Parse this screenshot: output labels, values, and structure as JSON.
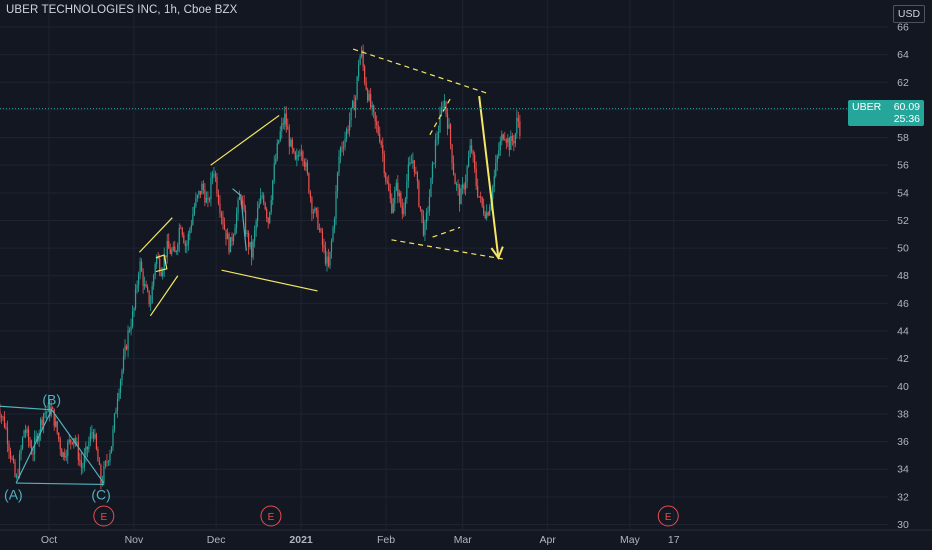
{
  "header": {
    "title": "UBER TECHNOLOGIES INC, 1h, Cboe BZX"
  },
  "price_scale": {
    "currency": "USD"
  },
  "last_price": {
    "symbol": "UBER",
    "price": "60.09",
    "countdown": "25:36"
  },
  "colors": {
    "background": "#131722",
    "up": "#26a69a",
    "down": "#ef5350",
    "drawing_yellow": "#f5e663",
    "drawing_teal": "#4fb3bf",
    "grid": "#1f2330",
    "earnings": "#e84d4d"
  },
  "chart_data": {
    "type": "candlestick",
    "yaxis": {
      "min": 30,
      "max": 66,
      "ticks": [
        30,
        32,
        34,
        36,
        38,
        40,
        42,
        44,
        46,
        48,
        50,
        52,
        54,
        56,
        58,
        60,
        62,
        64,
        66
      ]
    },
    "xaxis": {
      "labels": [
        {
          "label": "Oct",
          "day": 0,
          "bold": false
        },
        {
          "label": "Nov",
          "day": 31,
          "bold": false
        },
        {
          "label": "Dec",
          "day": 61,
          "bold": false
        },
        {
          "label": "2021",
          "day": 92,
          "bold": true
        },
        {
          "label": "Feb",
          "day": 123,
          "bold": false
        },
        {
          "label": "Mar",
          "day": 151,
          "bold": false
        },
        {
          "label": "Apr",
          "day": 182,
          "bold": false
        },
        {
          "label": "May",
          "day": 212,
          "bold": false
        },
        {
          "label": "17",
          "day": 228,
          "bold": false
        }
      ]
    },
    "price_path": [
      [
        -19,
        38.8
      ],
      [
        -16,
        37.2
      ],
      [
        -12,
        33.0
      ],
      [
        -9,
        37.0
      ],
      [
        -6,
        35.2
      ],
      [
        -2,
        38.1
      ],
      [
        1,
        38.3
      ],
      [
        5,
        35.0
      ],
      [
        9,
        36.5
      ],
      [
        12,
        34.0
      ],
      [
        16,
        37.0
      ],
      [
        19,
        33.0
      ],
      [
        21,
        34.5
      ],
      [
        23,
        36.0
      ],
      [
        25,
        39.5
      ],
      [
        27,
        41.5
      ],
      [
        29,
        44.0
      ],
      [
        31,
        45.5
      ],
      [
        33,
        49.0
      ],
      [
        35,
        47.0
      ],
      [
        37,
        46.0
      ],
      [
        39,
        49.5
      ],
      [
        41,
        48.5
      ],
      [
        43,
        50.0
      ],
      [
        46,
        49.5
      ],
      [
        48,
        52.0
      ],
      [
        50,
        50.0
      ],
      [
        53,
        53.0
      ],
      [
        56,
        54.5
      ],
      [
        58,
        53.0
      ],
      [
        60,
        56.0
      ],
      [
        62,
        53.5
      ],
      [
        64,
        51.5
      ],
      [
        66,
        50.0
      ],
      [
        68,
        52.0
      ],
      [
        70,
        54.0
      ],
      [
        72,
        51.0
      ],
      [
        74,
        49.5
      ],
      [
        76,
        52.5
      ],
      [
        78,
        54.0
      ],
      [
        80,
        52.0
      ],
      [
        82,
        55.5
      ],
      [
        84,
        58.0
      ],
      [
        86,
        59.5
      ],
      [
        88,
        57.5
      ],
      [
        90,
        56.0
      ],
      [
        92,
        57.5
      ],
      [
        94,
        55.5
      ],
      [
        96,
        53.0
      ],
      [
        98,
        52.0
      ],
      [
        100,
        50.0
      ],
      [
        102,
        48.5
      ],
      [
        104,
        52.0
      ],
      [
        106,
        57.0
      ],
      [
        108,
        58.0
      ],
      [
        110,
        59.5
      ],
      [
        112,
        61.0
      ],
      [
        113,
        63.5
      ],
      [
        114,
        64.2
      ],
      [
        115,
        62.5
      ],
      [
        117,
        60.5
      ],
      [
        119,
        59.0
      ],
      [
        121,
        58.0
      ],
      [
        123,
        55.0
      ],
      [
        125,
        53.0
      ],
      [
        127,
        54.5
      ],
      [
        129,
        52.5
      ],
      [
        131,
        55.5
      ],
      [
        133,
        56.5
      ],
      [
        135,
        53.5
      ],
      [
        137,
        51.0
      ],
      [
        139,
        54.0
      ],
      [
        141,
        57.5
      ],
      [
        143,
        59.5
      ],
      [
        144,
        61.0
      ],
      [
        146,
        58.5
      ],
      [
        148,
        55.0
      ],
      [
        150,
        53.5
      ],
      [
        152,
        55.0
      ],
      [
        154,
        57.5
      ],
      [
        156,
        54.5
      ],
      [
        158,
        53.0
      ],
      [
        160,
        52.5
      ],
      [
        162,
        54.5
      ],
      [
        164,
        57.0
      ],
      [
        166,
        58.5
      ],
      [
        168,
        57.5
      ],
      [
        170,
        58.0
      ],
      [
        171,
        59.5
      ],
      [
        172,
        58.5
      ]
    ],
    "earnings_days": [
      20,
      81,
      226
    ],
    "drawings": [
      {
        "color": "teal",
        "dashed": false,
        "points": [
          [
            -21,
            38.6
          ],
          [
            1,
            38.3
          ]
        ]
      },
      {
        "color": "teal",
        "dashed": false,
        "points": [
          [
            -12,
            33.0
          ],
          [
            20,
            32.9
          ]
        ]
      },
      {
        "color": "teal",
        "dashed": false,
        "points": [
          [
            -12,
            33.0
          ],
          [
            1,
            38.3
          ],
          [
            20,
            33.0
          ]
        ]
      },
      {
        "color": "teal",
        "dashed": false,
        "points": [
          [
            67,
            54.3
          ],
          [
            70,
            53.8
          ],
          [
            72,
            49.8
          ]
        ]
      },
      {
        "color": "yellow",
        "dashed": false,
        "points": [
          [
            33,
            49.7
          ],
          [
            45,
            52.2
          ]
        ]
      },
      {
        "color": "yellow",
        "dashed": false,
        "points": [
          [
            39,
            49.3
          ],
          [
            42,
            49.5
          ],
          [
            43,
            48.5
          ],
          [
            39,
            48.3
          ]
        ]
      },
      {
        "color": "yellow",
        "dashed": false,
        "points": [
          [
            37,
            45.1
          ],
          [
            47,
            48.0
          ]
        ]
      },
      {
        "color": "yellow",
        "dashed": false,
        "points": [
          [
            59,
            56.0
          ],
          [
            84,
            59.6
          ]
        ]
      },
      {
        "color": "yellow",
        "dashed": false,
        "points": [
          [
            63,
            48.4
          ],
          [
            98,
            46.9
          ]
        ]
      },
      {
        "color": "yellow",
        "dashed": true,
        "points": [
          [
            111,
            64.4
          ],
          [
            160,
            61.2
          ]
        ]
      },
      {
        "color": "yellow",
        "dashed": true,
        "points": [
          [
            125,
            50.6
          ],
          [
            166,
            49.2
          ]
        ]
      },
      {
        "color": "yellow",
        "dashed": true,
        "points": [
          [
            139,
            58.2
          ],
          [
            147,
            61.0
          ]
        ]
      },
      {
        "color": "yellow",
        "dashed": true,
        "points": [
          [
            140,
            50.8
          ],
          [
            150,
            51.5
          ]
        ]
      },
      {
        "color": "yellow",
        "dashed": false,
        "arrow": true,
        "points": [
          [
            157,
            61.0
          ],
          [
            164,
            49.3
          ]
        ]
      }
    ],
    "wave_labels": [
      {
        "text": "(A)",
        "day": -13,
        "price": 31.8
      },
      {
        "text": "(B)",
        "day": 1,
        "price": 38.7
      },
      {
        "text": "(C)",
        "day": 19,
        "price": 31.8
      }
    ],
    "earnings_label": "E"
  }
}
